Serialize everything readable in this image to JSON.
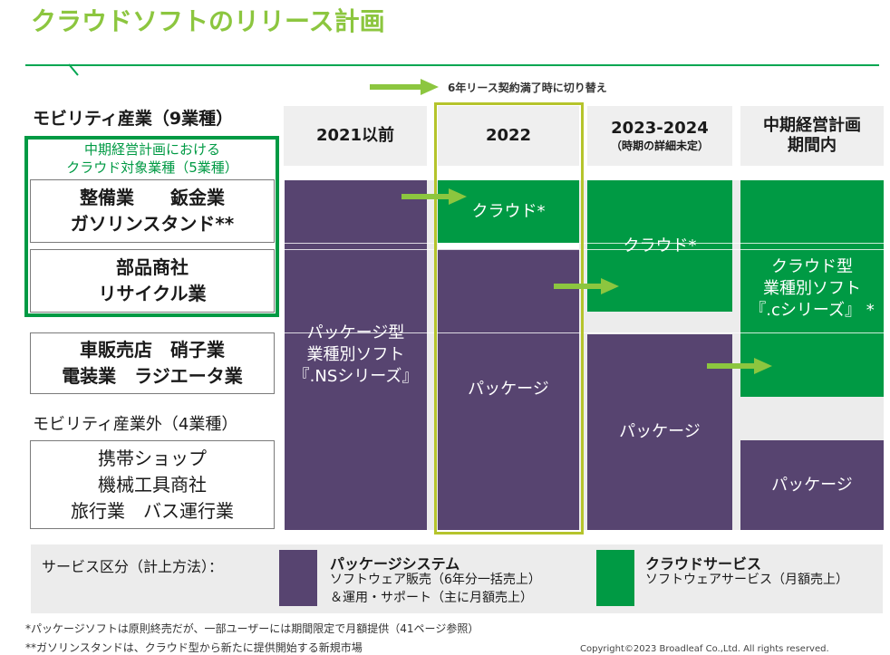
{
  "title": "クラウドソフトのリリース計画",
  "arrow_legend": "6年リース契約満了時に切り替え",
  "left_panel": {
    "mobility_header": "モビリティ産業（9業種）",
    "green_box_line1": "中期経営計画における",
    "green_box_line2": "クラウド対象業種（5業種）",
    "row1_line1": "整備業　　鈑金業",
    "row1_line2": "ガソリンスタンド**",
    "row2_line1": "部品商社",
    "row2_line2": "リサイクル業",
    "row3_line1": "車販売店　硝子業",
    "row3_line2": "電装業　ラジエータ業",
    "non_mobility_header": "モビリティ産業外（4業種）",
    "row4_line1": "携帯ショップ",
    "row4_line2": "機械工具商社",
    "row4_line3": "旅行業　バス運行業"
  },
  "columns": {
    "col1": {
      "label": "2021以前"
    },
    "col2": {
      "label": "2022"
    },
    "col3": {
      "label": "2023-2024",
      "sub": "（時期の詳細未定）"
    },
    "col4": {
      "label": "中期経営計画",
      "label2": "期間内"
    }
  },
  "blocks": {
    "c1_package_line1": "パッケージ型",
    "c1_package_line2": "業種別ソフト",
    "c1_package_line3": "『.NSシリーズ』",
    "c2_cloud": "クラウド*",
    "c2_package": "パッケージ",
    "c3_cloud": "クラウド*",
    "c3_package": "パッケージ",
    "c4_cloud_line1": "クラウド型",
    "c4_cloud_line2": "業種別ソフト",
    "c4_cloud_line3": "『.cシリーズ』 *",
    "c4_package": "パッケージ"
  },
  "legend": {
    "label": "サービス区分（計上方法）：",
    "package_title": "パッケージシステム",
    "package_line1": "ソフトウェア販売（6年分一括売上）",
    "package_line2": "＆運用・サポート（主に月額売上）",
    "cloud_title": "クラウドサービス",
    "cloud_line1": "ソフトウェアサービス（月額売上）"
  },
  "footnotes": {
    "note1": "*パッケージソフトは原則終売だが、一部ユーザーには期間限定で月額提供（41ページ参照）",
    "note2": "**ガソリンスタンドは、クラウド型から新たに提供開始する新規市場"
  },
  "copyright": "Copyright©2023 Broadleaf Co.,Ltd. All rights reserved.",
  "colors": {
    "purple": "#574470",
    "green": "#009a44",
    "light_green": "#8cc63f",
    "yellow_frame": "#b5c42c"
  }
}
